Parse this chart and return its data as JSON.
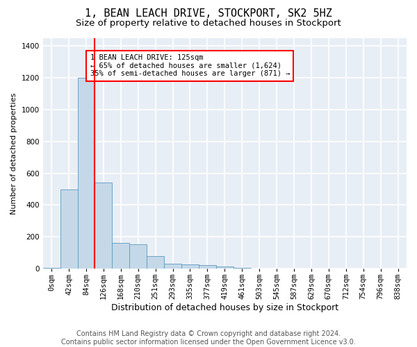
{
  "title": "1, BEAN LEACH DRIVE, STOCKPORT, SK2 5HZ",
  "subtitle": "Size of property relative to detached houses in Stockport",
  "xlabel": "Distribution of detached houses by size in Stockport",
  "ylabel": "Number of detached properties",
  "footer_line1": "Contains HM Land Registry data © Crown copyright and database right 2024.",
  "footer_line2": "Contains public sector information licensed under the Open Government Licence v3.0.",
  "bar_labels": [
    "0sqm",
    "42sqm",
    "84sqm",
    "126sqm",
    "168sqm",
    "210sqm",
    "251sqm",
    "293sqm",
    "335sqm",
    "377sqm",
    "419sqm",
    "461sqm",
    "503sqm",
    "545sqm",
    "587sqm",
    "629sqm",
    "670sqm",
    "712sqm",
    "754sqm",
    "796sqm",
    "838sqm"
  ],
  "bar_values": [
    5,
    500,
    1200,
    540,
    160,
    155,
    80,
    30,
    25,
    20,
    15,
    5,
    0,
    0,
    0,
    0,
    0,
    0,
    0,
    0,
    0
  ],
  "bar_color": "#c5d8e8",
  "bar_edge_color": "#5a9abf",
  "red_line_x": 2.5,
  "annotation_text": "1 BEAN LEACH DRIVE: 125sqm\n← 65% of detached houses are smaller (1,624)\n35% of semi-detached houses are larger (871) →",
  "annotation_box_color": "white",
  "annotation_box_edge": "red",
  "ylim": [
    0,
    1450
  ],
  "yticks": [
    0,
    200,
    400,
    600,
    800,
    1000,
    1200,
    1400
  ],
  "plot_bg_color": "#e8eef5",
  "grid_color": "white",
  "title_fontsize": 11,
  "subtitle_fontsize": 9.5,
  "xlabel_fontsize": 9,
  "ylabel_fontsize": 8,
  "tick_fontsize": 7.5,
  "footer_fontsize": 7
}
